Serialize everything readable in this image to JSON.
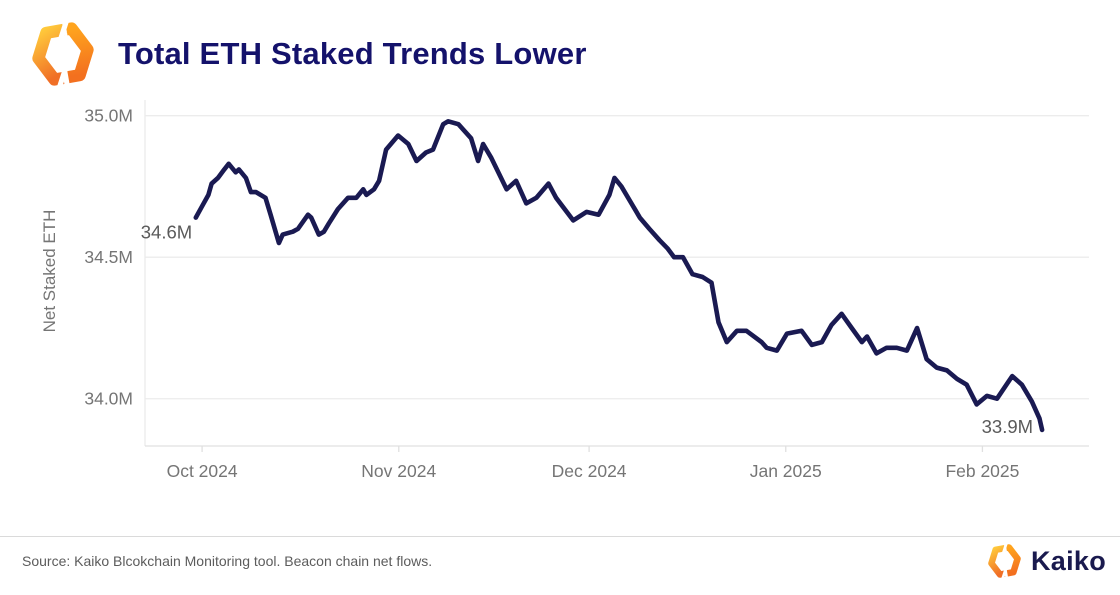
{
  "header": {
    "title": "Total ETH Staked Trends Lower"
  },
  "footer": {
    "source": "Source: Kaiko Blcokchain Monitoring tool. Beacon chain net flows.",
    "brand": "Kaiko"
  },
  "colors": {
    "line": "#1a1a52",
    "title": "#14126b",
    "axis_text": "#757575",
    "annotation": "#5a5a5a",
    "gridline": "#ececec",
    "axis_line": "#e0e0e0",
    "logo_yellow": "#ffc93b",
    "logo_orange": "#ffa41e",
    "logo_deep_orange": "#f06f26",
    "brand_navy": "#1a1a4e"
  },
  "chart_data": {
    "type": "line",
    "title": "Total ETH Staked Trends Lower",
    "ylabel": "Net Staked ETH",
    "series_name": "Net Staked ETH",
    "x_unit": "days since 2024-09-30",
    "grid": "horizontal-only",
    "ylim": [
      33.833,
      35.073
    ],
    "xlim_days": [
      -8,
      140.8
    ],
    "y_ticks": [
      {
        "value": 35.0,
        "label": "35.0M"
      },
      {
        "value": 34.5,
        "label": "34.5M"
      },
      {
        "value": 34.0,
        "label": "34.0M"
      }
    ],
    "x_ticks": [
      {
        "day": 1,
        "label": "Oct 2024"
      },
      {
        "day": 32,
        "label": "Nov 2024"
      },
      {
        "day": 62,
        "label": "Dec 2024"
      },
      {
        "day": 93,
        "label": "Jan 2025"
      },
      {
        "day": 124,
        "label": "Feb 2025"
      }
    ],
    "annotations": [
      {
        "label": "34.6M",
        "x_day": 0,
        "y_value": 34.64,
        "align": "left"
      },
      {
        "label": "33.9M",
        "x_day": 133.4,
        "y_value": 33.89,
        "align": "right"
      }
    ],
    "points": [
      [
        0,
        34.64
      ],
      [
        1,
        34.68
      ],
      [
        2,
        34.72
      ],
      [
        2.5,
        34.76
      ],
      [
        3.5,
        34.78
      ],
      [
        4.5,
        34.81
      ],
      [
        5.2,
        34.83
      ],
      [
        6.3,
        34.8
      ],
      [
        6.8,
        34.81
      ],
      [
        7.9,
        34.78
      ],
      [
        8.7,
        34.73
      ],
      [
        9.5,
        34.73
      ],
      [
        11,
        34.71
      ],
      [
        11.8,
        34.65
      ],
      [
        13.1,
        34.55
      ],
      [
        13.7,
        34.58
      ],
      [
        15.3,
        34.59
      ],
      [
        16.1,
        34.6
      ],
      [
        17.7,
        34.65
      ],
      [
        18.2,
        34.64
      ],
      [
        19.4,
        34.58
      ],
      [
        20.2,
        34.59
      ],
      [
        21,
        34.62
      ],
      [
        22.4,
        34.67
      ],
      [
        24,
        34.71
      ],
      [
        25.3,
        34.71
      ],
      [
        26.4,
        34.74
      ],
      [
        26.9,
        34.72
      ],
      [
        28.1,
        34.74
      ],
      [
        28.9,
        34.77
      ],
      [
        30,
        34.88
      ],
      [
        31.9,
        34.93
      ],
      [
        33.5,
        34.9
      ],
      [
        34.8,
        34.84
      ],
      [
        36.3,
        34.87
      ],
      [
        37.4,
        34.88
      ],
      [
        39,
        34.97
      ],
      [
        39.8,
        34.98
      ],
      [
        41.4,
        34.97
      ],
      [
        43.4,
        34.92
      ],
      [
        44.5,
        34.84
      ],
      [
        45.3,
        34.9
      ],
      [
        46.6,
        34.85
      ],
      [
        49,
        34.74
      ],
      [
        50.5,
        34.77
      ],
      [
        52.1,
        34.69
      ],
      [
        53.7,
        34.71
      ],
      [
        55.6,
        34.76
      ],
      [
        56.8,
        34.71
      ],
      [
        59.5,
        34.63
      ],
      [
        61.6,
        34.66
      ],
      [
        63.5,
        34.65
      ],
      [
        65.2,
        34.72
      ],
      [
        66,
        34.78
      ],
      [
        67.1,
        34.75
      ],
      [
        69.2,
        34.67
      ],
      [
        70,
        34.64
      ],
      [
        71.5,
        34.6
      ],
      [
        73.1,
        34.56
      ],
      [
        74.4,
        34.53
      ],
      [
        75.4,
        34.5
      ],
      [
        76.8,
        34.5
      ],
      [
        78.3,
        34.44
      ],
      [
        79.9,
        34.43
      ],
      [
        81.3,
        34.41
      ],
      [
        82.4,
        34.27
      ],
      [
        83.7,
        34.2
      ],
      [
        85.3,
        34.24
      ],
      [
        86.8,
        34.24
      ],
      [
        89.2,
        34.2
      ],
      [
        90,
        34.18
      ],
      [
        91.6,
        34.17
      ],
      [
        93.2,
        34.23
      ],
      [
        95.5,
        34.24
      ],
      [
        97.1,
        34.19
      ],
      [
        98.7,
        34.2
      ],
      [
        100.2,
        34.26
      ],
      [
        101.8,
        34.3
      ],
      [
        103.4,
        34.25
      ],
      [
        105,
        34.2
      ],
      [
        105.8,
        34.22
      ],
      [
        107.3,
        34.16
      ],
      [
        108.9,
        34.18
      ],
      [
        110.5,
        34.18
      ],
      [
        112.1,
        34.17
      ],
      [
        113.7,
        34.25
      ],
      [
        115.2,
        34.14
      ],
      [
        116.8,
        34.11
      ],
      [
        118.4,
        34.1
      ],
      [
        120,
        34.07
      ],
      [
        121.5,
        34.05
      ],
      [
        123.1,
        33.98
      ],
      [
        124.7,
        34.01
      ],
      [
        126.3,
        34.0
      ],
      [
        128.7,
        34.08
      ],
      [
        130.2,
        34.05
      ],
      [
        131.8,
        33.99
      ],
      [
        133,
        33.93
      ],
      [
        133.4,
        33.89
      ]
    ]
  }
}
